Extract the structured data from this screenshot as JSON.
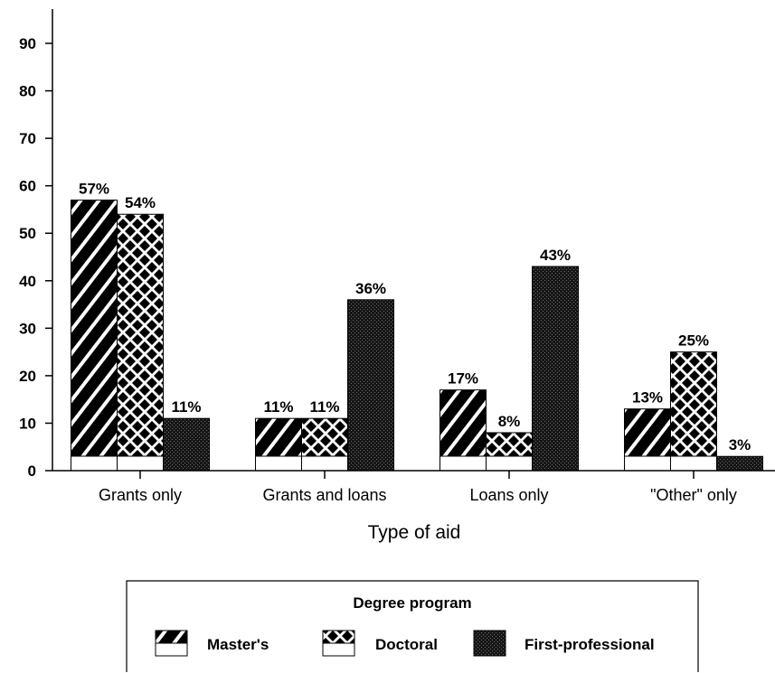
{
  "chart_data": {
    "type": "bar",
    "title": "",
    "xlabel": "Type of aid",
    "ylabel": "",
    "ylim": [
      0,
      90
    ],
    "yticks": [
      0,
      10,
      20,
      30,
      40,
      50,
      60,
      70,
      80,
      90
    ],
    "categories": [
      "Grants only",
      "Grants and loans",
      "Loans only",
      "\"Other\" only"
    ],
    "series": [
      {
        "name": "Master's",
        "pattern": "diagonal-stripes",
        "values": [
          57,
          11,
          17,
          13
        ],
        "labels": [
          "57%",
          "11%",
          "17%",
          "13%"
        ]
      },
      {
        "name": "Doctoral",
        "pattern": "checker-diamond",
        "values": [
          54,
          11,
          8,
          25
        ],
        "labels": [
          "54%",
          "11%",
          "8%",
          "25%"
        ]
      },
      {
        "name": "First-professional",
        "pattern": "dense-dots",
        "values": [
          11,
          36,
          43,
          3
        ],
        "labels": [
          "11%",
          "36%",
          "43%",
          "3%"
        ]
      }
    ],
    "grid": false,
    "legend": {
      "title": "Degree program",
      "placement": "bottom-center"
    },
    "colors": {
      "ink": "#000000",
      "background": "#ffffff"
    }
  }
}
